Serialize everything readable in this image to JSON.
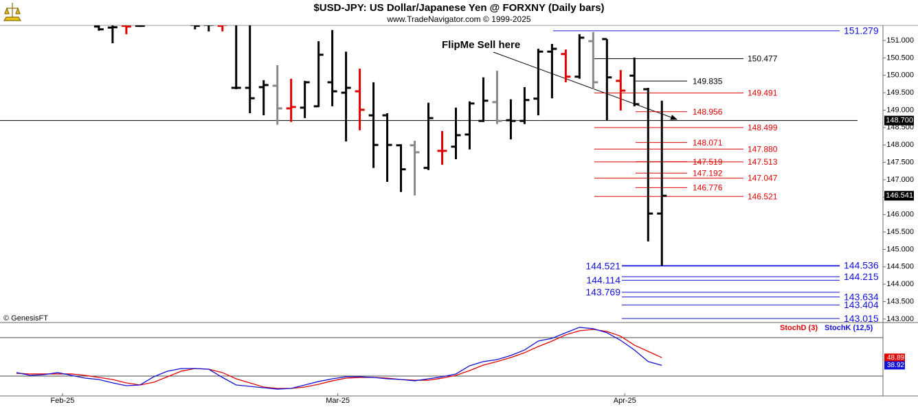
{
  "chart_data": [
    {
      "type": "ohlc",
      "title": "$USD-JPY:  US Dollar/Japanese Yen @ FORXNY  (Daily bars)",
      "subtitle": "www.TradeNavigator.com © 1999-2025",
      "watermark": "© GenesisFT",
      "annotation": "FlipMe Sell here",
      "xlim": [
        -1.2,
        63.1
      ],
      "ylim": [
        142.9,
        151.433
      ],
      "yticks": [
        {
          "value": 143,
          "label": "143.000"
        },
        {
          "value": 143.5,
          "label": "143.500"
        },
        {
          "value": 144,
          "label": "144.000"
        },
        {
          "value": 144.5,
          "label": "144.500"
        },
        {
          "value": 145,
          "label": "145.000"
        },
        {
          "value": 145.5,
          "label": "145.500"
        },
        {
          "value": 146,
          "label": "146.000"
        },
        {
          "value": 146.5,
          "label": "146.500"
        },
        {
          "value": 147,
          "label": "147.000"
        },
        {
          "value": 147.5,
          "label": "147.500"
        },
        {
          "value": 148,
          "label": "148.000"
        },
        {
          "value": 148.5,
          "label": "148.500"
        },
        {
          "value": 149,
          "label": "149.000"
        },
        {
          "value": 149.5,
          "label": "149.500"
        },
        {
          "value": 150,
          "label": "150.000"
        },
        {
          "value": 150.5,
          "label": "150.500"
        },
        {
          "value": 151,
          "label": "151.000"
        }
      ],
      "x": [
        6,
        7,
        8,
        9,
        13,
        14,
        15,
        16,
        17,
        18,
        19,
        20,
        21,
        22,
        23,
        24,
        25,
        26,
        27,
        28,
        29,
        30,
        31,
        32,
        33,
        34,
        35,
        36,
        37,
        38,
        39,
        40,
        41,
        42,
        43,
        44,
        45,
        46,
        47
      ],
      "open": [
        151.4,
        151.37,
        151.42,
        151.42,
        151.45,
        151.45,
        151.42,
        149.64,
        149.64,
        149.66,
        149.7,
        149.05,
        149.07,
        149.11,
        149.8,
        149.5,
        149.54,
        148.85,
        148.85,
        147.99,
        147.99,
        147.34,
        147.83,
        147.95,
        148.3,
        148.69,
        149.23,
        148.71,
        148.69,
        149.33,
        150.68,
        150.61,
        149.96,
        150.98,
        151.04,
        149.84,
        149.99,
        149.6,
        146.03
      ],
      "high": [
        151.5,
        151.6,
        151.6,
        151.5,
        151.6,
        151.6,
        151.6,
        151.6,
        151.6,
        149.86,
        150.29,
        149.9,
        149.84,
        150.98,
        151.3,
        150.68,
        150.19,
        149.8,
        148.91,
        148.02,
        148.12,
        149.21,
        148.4,
        149.07,
        149.25,
        149.94,
        150.13,
        149.31,
        149.66,
        150.76,
        150.9,
        150.74,
        151.18,
        151.24,
        151.04,
        150.15,
        150.51,
        149.64,
        149.27
      ],
      "low": [
        151.28,
        150.92,
        151.18,
        151.39,
        151.32,
        151.26,
        151.26,
        149.6,
        148.91,
        148.85,
        148.58,
        148.66,
        148.77,
        149.09,
        149.11,
        148.1,
        148.42,
        147.34,
        146.94,
        146.65,
        146.55,
        147.28,
        147.43,
        147.59,
        147.87,
        148.66,
        148.6,
        148.16,
        148.6,
        148.85,
        149.34,
        149.8,
        149.9,
        149.6,
        148.71,
        148.99,
        149.11,
        145.23,
        144.536
      ],
      "close": [
        151.32,
        151.38,
        151.4,
        151.42,
        151.42,
        151.45,
        151.45,
        149.64,
        149.34,
        149.72,
        149.05,
        149.09,
        149.8,
        150.59,
        149.54,
        149.64,
        149.01,
        148.0,
        148.0,
        147.3,
        147.79,
        148.77,
        147.83,
        148.28,
        149.19,
        149.27,
        148.69,
        148.69,
        149.29,
        150.68,
        150.76,
        149.96,
        151.08,
        149.8,
        149.94,
        149.56,
        149.17,
        146.03,
        146.541
      ],
      "bar_colors": [
        "#000000",
        "#000000",
        "#e00000",
        "#000000",
        "#000000",
        "#000000",
        "#e00000",
        "#000000",
        "#000000",
        "#000000",
        "#888888",
        "#e00000",
        "#000000",
        "#000000",
        "#000000",
        "#000000",
        "#e00000",
        "#000000",
        "#000000",
        "#000000",
        "#888888",
        "#000000",
        "#e00000",
        "#000000",
        "#000000",
        "#000000",
        "#888888",
        "#000000",
        "#000000",
        "#000000",
        "#000000",
        "#e00000",
        "#000000",
        "#888888",
        "#000000",
        "#e00000",
        "#000000",
        "#000000",
        "#000000"
      ],
      "current_line": {
        "value": 148.7,
        "label": "148.700"
      },
      "levels": [
        {
          "value": 151.279,
          "color": "#1010d8",
          "style": "outer"
        },
        {
          "value": 150.477,
          "color": "#000000",
          "style": "wide"
        },
        {
          "value": 149.835,
          "color": "#000000",
          "style": "inner"
        },
        {
          "value": 149.491,
          "color": "#e00000",
          "style": "wide"
        },
        {
          "value": 148.956,
          "color": "#e00000",
          "style": "inner"
        },
        {
          "value": 148.499,
          "color": "#e00000",
          "style": "wide"
        },
        {
          "value": 148.071,
          "color": "#e00000",
          "style": "inner"
        },
        {
          "value": 147.88,
          "label": "147.880",
          "color": "#e00000",
          "style": "wide"
        },
        {
          "value": 147.519,
          "color": "#e00000",
          "style": "inner"
        },
        {
          "value": 147.513,
          "color": "#e00000",
          "style": "wide"
        },
        {
          "value": 147.192,
          "color": "#e00000",
          "style": "inner"
        },
        {
          "value": 147.047,
          "color": "#e00000",
          "style": "wide"
        },
        {
          "value": 146.776,
          "color": "#e00000",
          "style": "inner"
        },
        {
          "value": 146.521,
          "color": "#e00000",
          "style": "wide"
        },
        {
          "value": 144.536,
          "color": "#1010d8",
          "style": "outer"
        },
        {
          "value": 144.521,
          "color": "#1010d8",
          "style": "outer-left"
        },
        {
          "value": 144.215,
          "color": "#1010d8",
          "style": "outer"
        },
        {
          "value": 144.114,
          "color": "#1010d8",
          "style": "outer-left"
        },
        {
          "value": 143.769,
          "color": "#1010d8",
          "style": "outer-left"
        },
        {
          "value": 143.634,
          "color": "#1010d8",
          "style": "outer"
        },
        {
          "value": 143.404,
          "color": "#1010d8",
          "style": "outer"
        },
        {
          "value": 143.015,
          "color": "#1010d8",
          "style": "outer"
        }
      ]
    },
    {
      "type": "line",
      "xlim": [
        -1.2,
        63.1
      ],
      "ylim": [
        0,
        94.6
      ],
      "guides": [
        25,
        75
      ],
      "xticks": [
        {
          "value": 3.35,
          "label": "Feb-25"
        },
        {
          "value": 23.4,
          "label": "Mar-25"
        },
        {
          "value": 44.3,
          "label": "Apr-25"
        }
      ],
      "x": [
        0,
        1,
        2,
        3,
        4,
        5,
        6,
        7,
        8,
        9,
        10,
        11,
        12,
        13,
        14,
        15,
        16,
        17,
        18,
        19,
        20,
        21,
        22,
        23,
        24,
        25,
        26,
        27,
        28,
        29,
        30,
        31,
        32,
        33,
        34,
        35,
        36,
        37,
        38,
        39,
        40,
        41,
        42,
        43,
        44,
        45,
        46,
        47
      ],
      "series": [
        {
          "name": "StochD (3)",
          "color": "#e00000",
          "values": [
            28.6,
            27.7,
            27.7,
            27.7,
            27.7,
            25.9,
            23.2,
            20.5,
            16.1,
            13.4,
            17.0,
            24.1,
            31.3,
            34.8,
            33.9,
            29.5,
            21.4,
            16.1,
            10.7,
            8.9,
            8.9,
            10.7,
            14.3,
            18.8,
            22.3,
            23.2,
            23.2,
            22.3,
            20.5,
            19.6,
            19.6,
            22.3,
            25.9,
            32.1,
            39.3,
            43.8,
            49.1,
            55.4,
            63.4,
            70.5,
            78.6,
            83.9,
            85.7,
            83.0,
            76.8,
            65.2,
            57.1,
            48.89
          ]
        },
        {
          "name": "StochK (12,5)",
          "color": "#1010d8",
          "values": [
            29.5,
            25.9,
            26.8,
            29.5,
            25.9,
            22.3,
            20.5,
            16.1,
            12.5,
            13.4,
            24.1,
            31.3,
            34.8,
            34.8,
            33.9,
            23.2,
            13.4,
            11.6,
            9.8,
            8.0,
            8.9,
            13.4,
            17.9,
            21.4,
            24.1,
            24.1,
            23.2,
            21.4,
            20.5,
            18.8,
            21.4,
            24.1,
            27.7,
            38.4,
            43.8,
            46.4,
            51.8,
            58.9,
            70.5,
            74.1,
            81.3,
            88.4,
            86.6,
            81.3,
            71.4,
            58.9,
            43.8,
            38.92
          ]
        }
      ]
    }
  ]
}
